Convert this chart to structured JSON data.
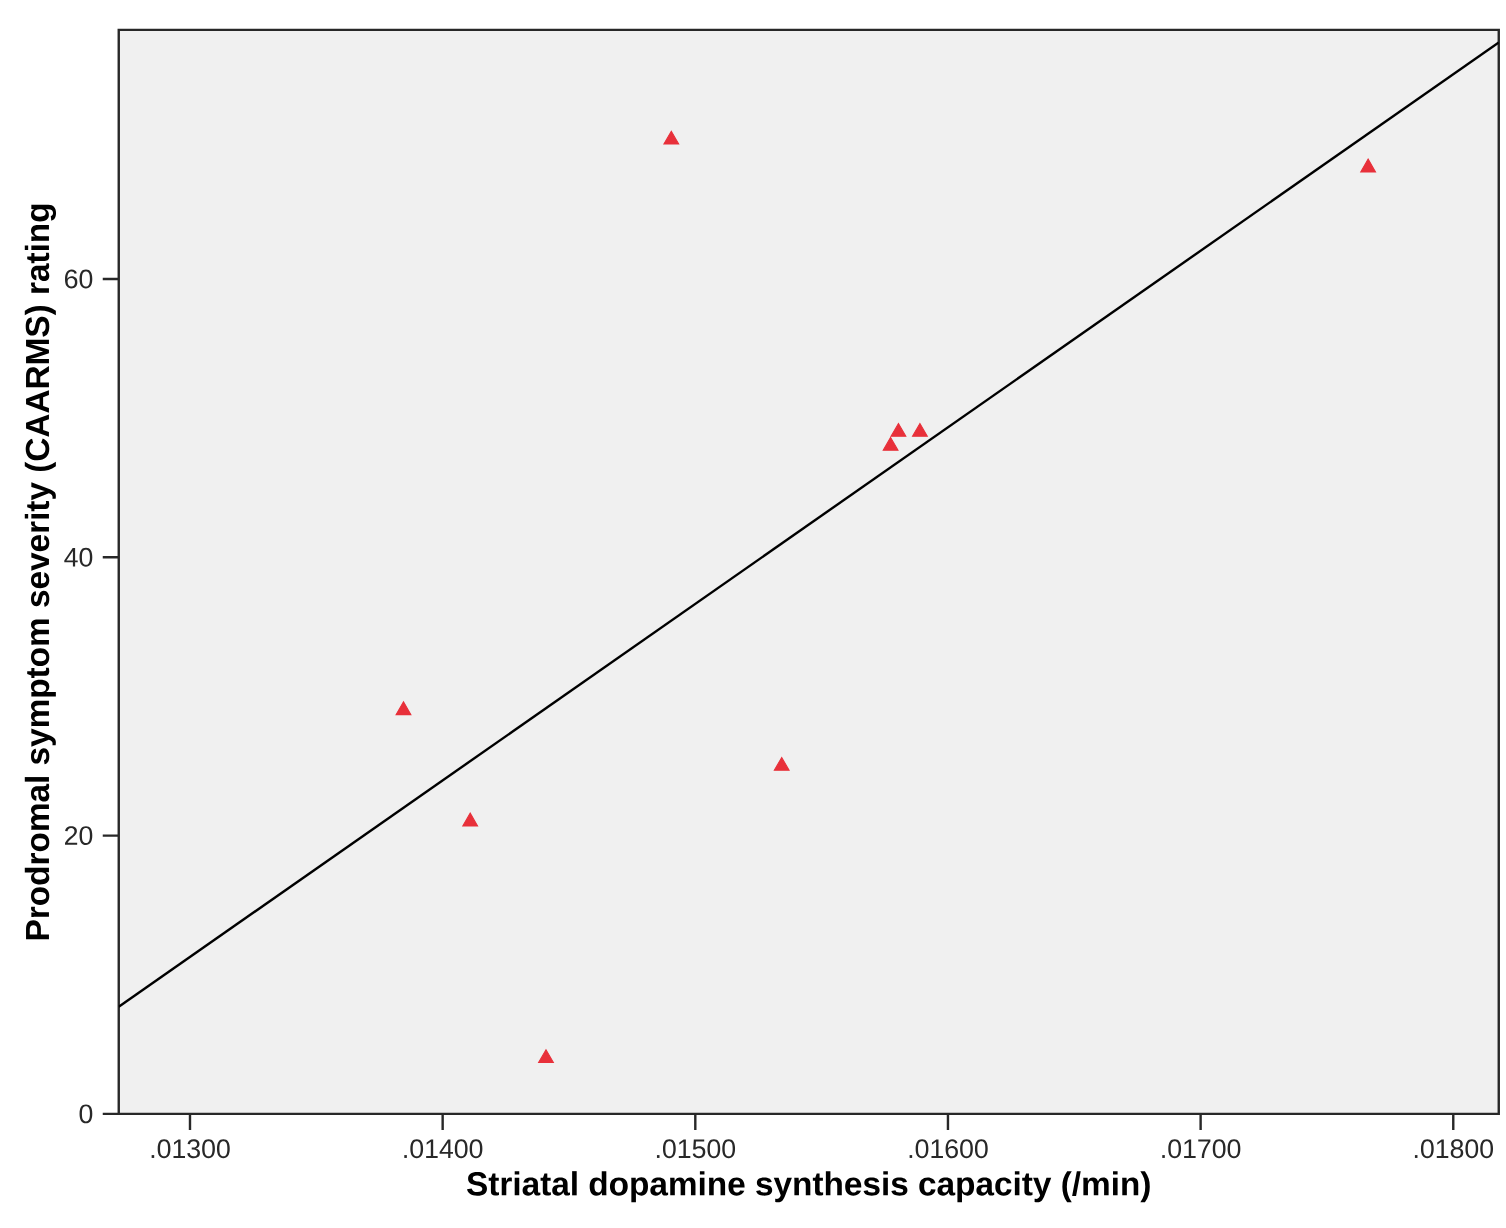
{
  "chart_data": {
    "type": "scatter",
    "xlabel": "Striatal dopamine synthesis capacity (/min)",
    "ylabel": "Prodromal symptom severity (CAARMS) rating",
    "xlim": [
      0.012718,
      0.01818
    ],
    "ylim": [
      0,
      77.9
    ],
    "xticks": [
      {
        "value": 0.013,
        "label": ".01300"
      },
      {
        "value": 0.014,
        "label": ".01400"
      },
      {
        "value": 0.015,
        "label": ".01500"
      },
      {
        "value": 0.016,
        "label": ".01600"
      },
      {
        "value": 0.017,
        "label": ".01700"
      },
      {
        "value": 0.018,
        "label": ".01800"
      }
    ],
    "yticks": [
      0,
      20,
      40,
      60
    ],
    "grid": false,
    "series": [
      {
        "type": "scatter",
        "color": "#e8303a",
        "marker": "triangle",
        "x": [
          0.013845,
          0.014109,
          0.014409,
          0.014905,
          0.015342,
          0.015773,
          0.015804,
          0.015889,
          0.017663
        ],
        "values": [
          29,
          21,
          4,
          70,
          25,
          48,
          49,
          49,
          68
        ]
      },
      {
        "type": "line",
        "color": "#000000",
        "marker": "none",
        "line_style": "solid",
        "x": [
          0.012718,
          0.01818
        ],
        "values": [
          7.7,
          77.0
        ]
      }
    ]
  }
}
